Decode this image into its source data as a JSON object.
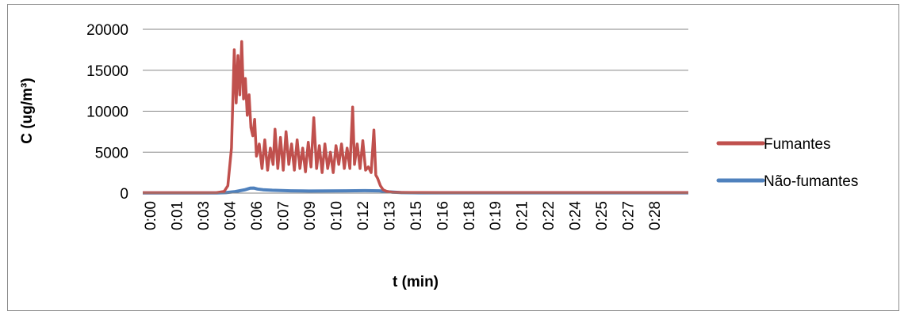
{
  "chart_data": {
    "type": "line",
    "xlabel": "t (min)",
    "ylabel": "C (ug/m³)",
    "x_tick_labels": [
      "0:00",
      "0:01",
      "0:03",
      "0:04",
      "0:06",
      "0:07",
      "0:09",
      "0:10",
      "0:12",
      "0:13",
      "0:15",
      "0:16",
      "0:18",
      "0:19",
      "0:21",
      "0:22",
      "0:24",
      "0:25",
      "0:27",
      "0:28"
    ],
    "y_ticks": [
      "0",
      "5000",
      "10000",
      "15000",
      "20000"
    ],
    "ylim": [
      0,
      20000
    ],
    "xlim_min": [
      0,
      29.5
    ],
    "grid": "horizontal",
    "legend_position": "right",
    "series": [
      {
        "name": "Fumantes",
        "color": "#c0504d",
        "x_min": [
          0,
          1,
          2,
          3,
          4,
          4.4,
          4.6,
          4.8,
          4.95,
          5.05,
          5.15,
          5.25,
          5.35,
          5.45,
          5.55,
          5.65,
          5.75,
          5.85,
          5.95,
          6.05,
          6.15,
          6.3,
          6.45,
          6.6,
          6.75,
          6.9,
          7.05,
          7.15,
          7.3,
          7.45,
          7.6,
          7.75,
          7.9,
          8.05,
          8.2,
          8.35,
          8.5,
          8.65,
          8.8,
          8.95,
          9.1,
          9.25,
          9.4,
          9.55,
          9.7,
          9.85,
          10.0,
          10.15,
          10.3,
          10.45,
          10.6,
          10.75,
          10.9,
          11.05,
          11.2,
          11.35,
          11.45,
          11.6,
          11.75,
          11.9,
          12.05,
          12.2,
          12.35,
          12.5,
          12.6,
          12.7,
          12.85,
          13.0,
          13.2,
          13.5,
          14,
          15,
          16,
          17,
          18,
          19,
          20,
          21,
          22,
          23,
          24,
          25,
          26,
          27,
          28,
          29.5
        ],
        "values": [
          50,
          50,
          50,
          50,
          60,
          200,
          900,
          5500,
          17500,
          11000,
          16800,
          12000,
          18500,
          11500,
          14000,
          9500,
          12000,
          8000,
          7000,
          9000,
          4500,
          6000,
          3000,
          6500,
          2800,
          5500,
          3500,
          7800,
          3000,
          6800,
          2800,
          7500,
          3500,
          6000,
          2800,
          6500,
          3000,
          5500,
          2600,
          6200,
          3200,
          9200,
          3000,
          5800,
          2500,
          6000,
          3000,
          5000,
          2500,
          5800,
          3500,
          6000,
          3000,
          5500,
          3000,
          10500,
          3500,
          6000,
          3000,
          6400,
          2800,
          3200,
          2500,
          7700,
          2200,
          1800,
          900,
          400,
          200,
          100,
          80,
          70,
          60,
          60,
          60,
          60,
          60,
          60,
          60,
          60,
          60,
          60,
          60,
          60,
          60,
          60
        ]
      },
      {
        "name": "Não-fumantes",
        "color": "#4f81bd",
        "x_min": [
          0,
          1,
          2,
          3,
          4,
          4.5,
          5.0,
          5.5,
          5.8,
          6.0,
          6.2,
          6.5,
          7,
          8,
          9,
          10,
          11,
          12,
          12.8,
          13.3,
          14,
          15,
          16,
          17,
          18,
          19,
          20,
          21,
          22,
          23,
          24,
          25,
          26,
          27,
          28,
          29.5
        ],
        "values": [
          20,
          20,
          20,
          20,
          30,
          60,
          180,
          400,
          600,
          620,
          500,
          420,
          350,
          280,
          250,
          270,
          280,
          300,
          280,
          150,
          60,
          40,
          40,
          40,
          40,
          40,
          40,
          40,
          40,
          40,
          40,
          40,
          40,
          40,
          40,
          40
        ]
      }
    ]
  }
}
